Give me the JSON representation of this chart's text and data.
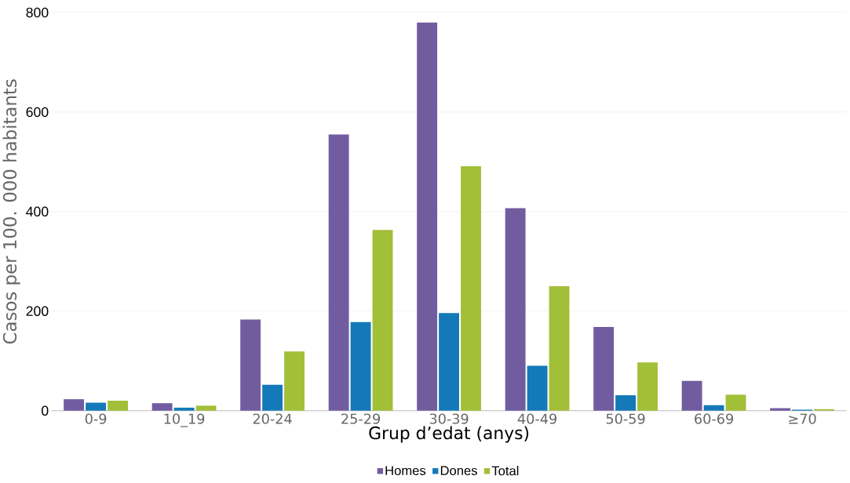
{
  "chart_data": {
    "type": "bar",
    "xlabel": "Grup d’edat (anys)",
    "ylabel": "Casos per 100. 000 habitants",
    "categories": [
      "0-9",
      "10_19",
      "20-24",
      "25-29",
      "30-39",
      "40-49",
      "50-59",
      "60-69",
      "≥70"
    ],
    "series": [
      {
        "name": "Homes",
        "color": "#725ca0",
        "values": [
          23,
          15,
          183,
          555,
          780,
          407,
          168,
          60,
          5
        ]
      },
      {
        "name": "Dones",
        "color": "#1479b8",
        "values": [
          16,
          6,
          52,
          178,
          196,
          90,
          31,
          11,
          2
        ]
      },
      {
        "name": "Total",
        "color": "#a2bf38",
        "values": [
          20,
          10,
          119,
          363,
          491,
          250,
          97,
          32,
          3
        ]
      }
    ],
    "ylim": [
      0,
      800
    ],
    "yticks": [
      0,
      200,
      400,
      600,
      800
    ],
    "grid": "y",
    "legend": "bottom"
  }
}
